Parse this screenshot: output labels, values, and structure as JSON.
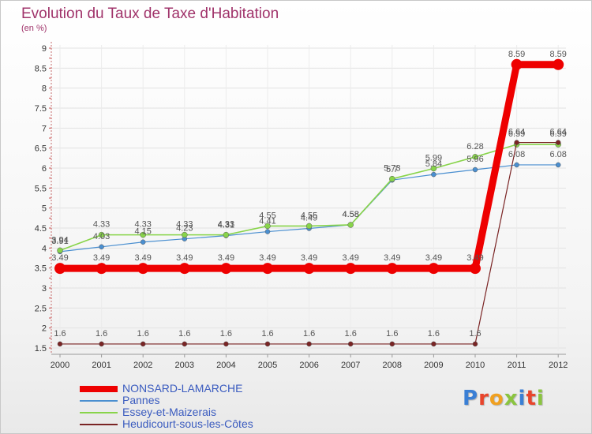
{
  "header": {
    "title": "Evolution du Taux de Taxe d'Habitation",
    "subtitle": "(en %)"
  },
  "logo": {
    "text": "Proxiti",
    "letter_colors": [
      "#3a7fd5",
      "#e8452c",
      "#f0a020",
      "#8ac43f",
      "#3a7fd5",
      "#e8452c",
      "#8ac43f"
    ]
  },
  "chart_data": {
    "type": "line",
    "title": "Evolution du Taux de Taxe d'Habitation",
    "subtitle": "(en %)",
    "xlabel": "",
    "ylabel": "",
    "categories": [
      "2000",
      "2001",
      "2002",
      "2003",
      "2004",
      "2005",
      "2006",
      "2007",
      "2008",
      "2009",
      "2010",
      "2011",
      "2012"
    ],
    "ylim": [
      1.5,
      9
    ],
    "yticks": [
      "1.5",
      "2",
      "2.5",
      "3",
      "3.5",
      "4",
      "4.5",
      "5",
      "5.5",
      "6",
      "6.5",
      "7",
      "7.5",
      "8",
      "8.5",
      "9"
    ],
    "grid": true,
    "legend_position": "bottom-left",
    "series": [
      {
        "name": "NONSARD-LAMARCHE",
        "color": "#ee0000",
        "values": [
          3.49,
          3.49,
          3.49,
          3.49,
          3.49,
          3.49,
          3.49,
          3.49,
          3.49,
          3.49,
          3.49,
          8.59,
          8.59
        ],
        "labels": [
          "3.49",
          "3.49",
          "3.49",
          "3.49",
          "3.49",
          "3.49",
          "3.49",
          "3.49",
          "3.49",
          "3.49",
          "3.49",
          "8.59",
          "8.59"
        ]
      },
      {
        "name": "Pannes",
        "color": "#4a8fd0",
        "values": [
          3.91,
          4.03,
          4.15,
          4.23,
          4.31,
          4.41,
          4.49,
          4.58,
          5.7,
          5.84,
          5.96,
          6.08,
          6.08
        ],
        "labels": [
          "3.91",
          "4.03",
          "4.15",
          "4.23",
          "4.31",
          "4.41",
          "4.49",
          "4.58",
          "5.7",
          "5.84",
          "5.96",
          "6.08",
          "6.08"
        ]
      },
      {
        "name": "Essey-et-Maizerais",
        "color": "#88d44a",
        "values": [
          3.94,
          4.33,
          4.33,
          4.33,
          4.33,
          4.55,
          4.55,
          4.58,
          5.73,
          5.99,
          6.28,
          6.59,
          6.59
        ],
        "labels": [
          "3.94",
          "4.33",
          "4.33",
          "4.33",
          "4.33",
          "4.55",
          "4.55",
          "4.58",
          "5.73",
          "5.99",
          "6.28",
          "6.59",
          "6.59"
        ]
      },
      {
        "name": "Heudicourt-sous-les-Côtes",
        "color": "#7a2424",
        "values": [
          1.6,
          1.6,
          1.6,
          1.6,
          1.6,
          1.6,
          1.6,
          1.6,
          1.6,
          1.6,
          1.6,
          6.64,
          6.64
        ],
        "labels": [
          "1.6",
          "1.6",
          "1.6",
          "1.6",
          "1.6",
          "1.6",
          "1.6",
          "1.6",
          "1.6",
          "1.6",
          "1.6",
          "6.64",
          "6.64"
        ]
      }
    ]
  }
}
